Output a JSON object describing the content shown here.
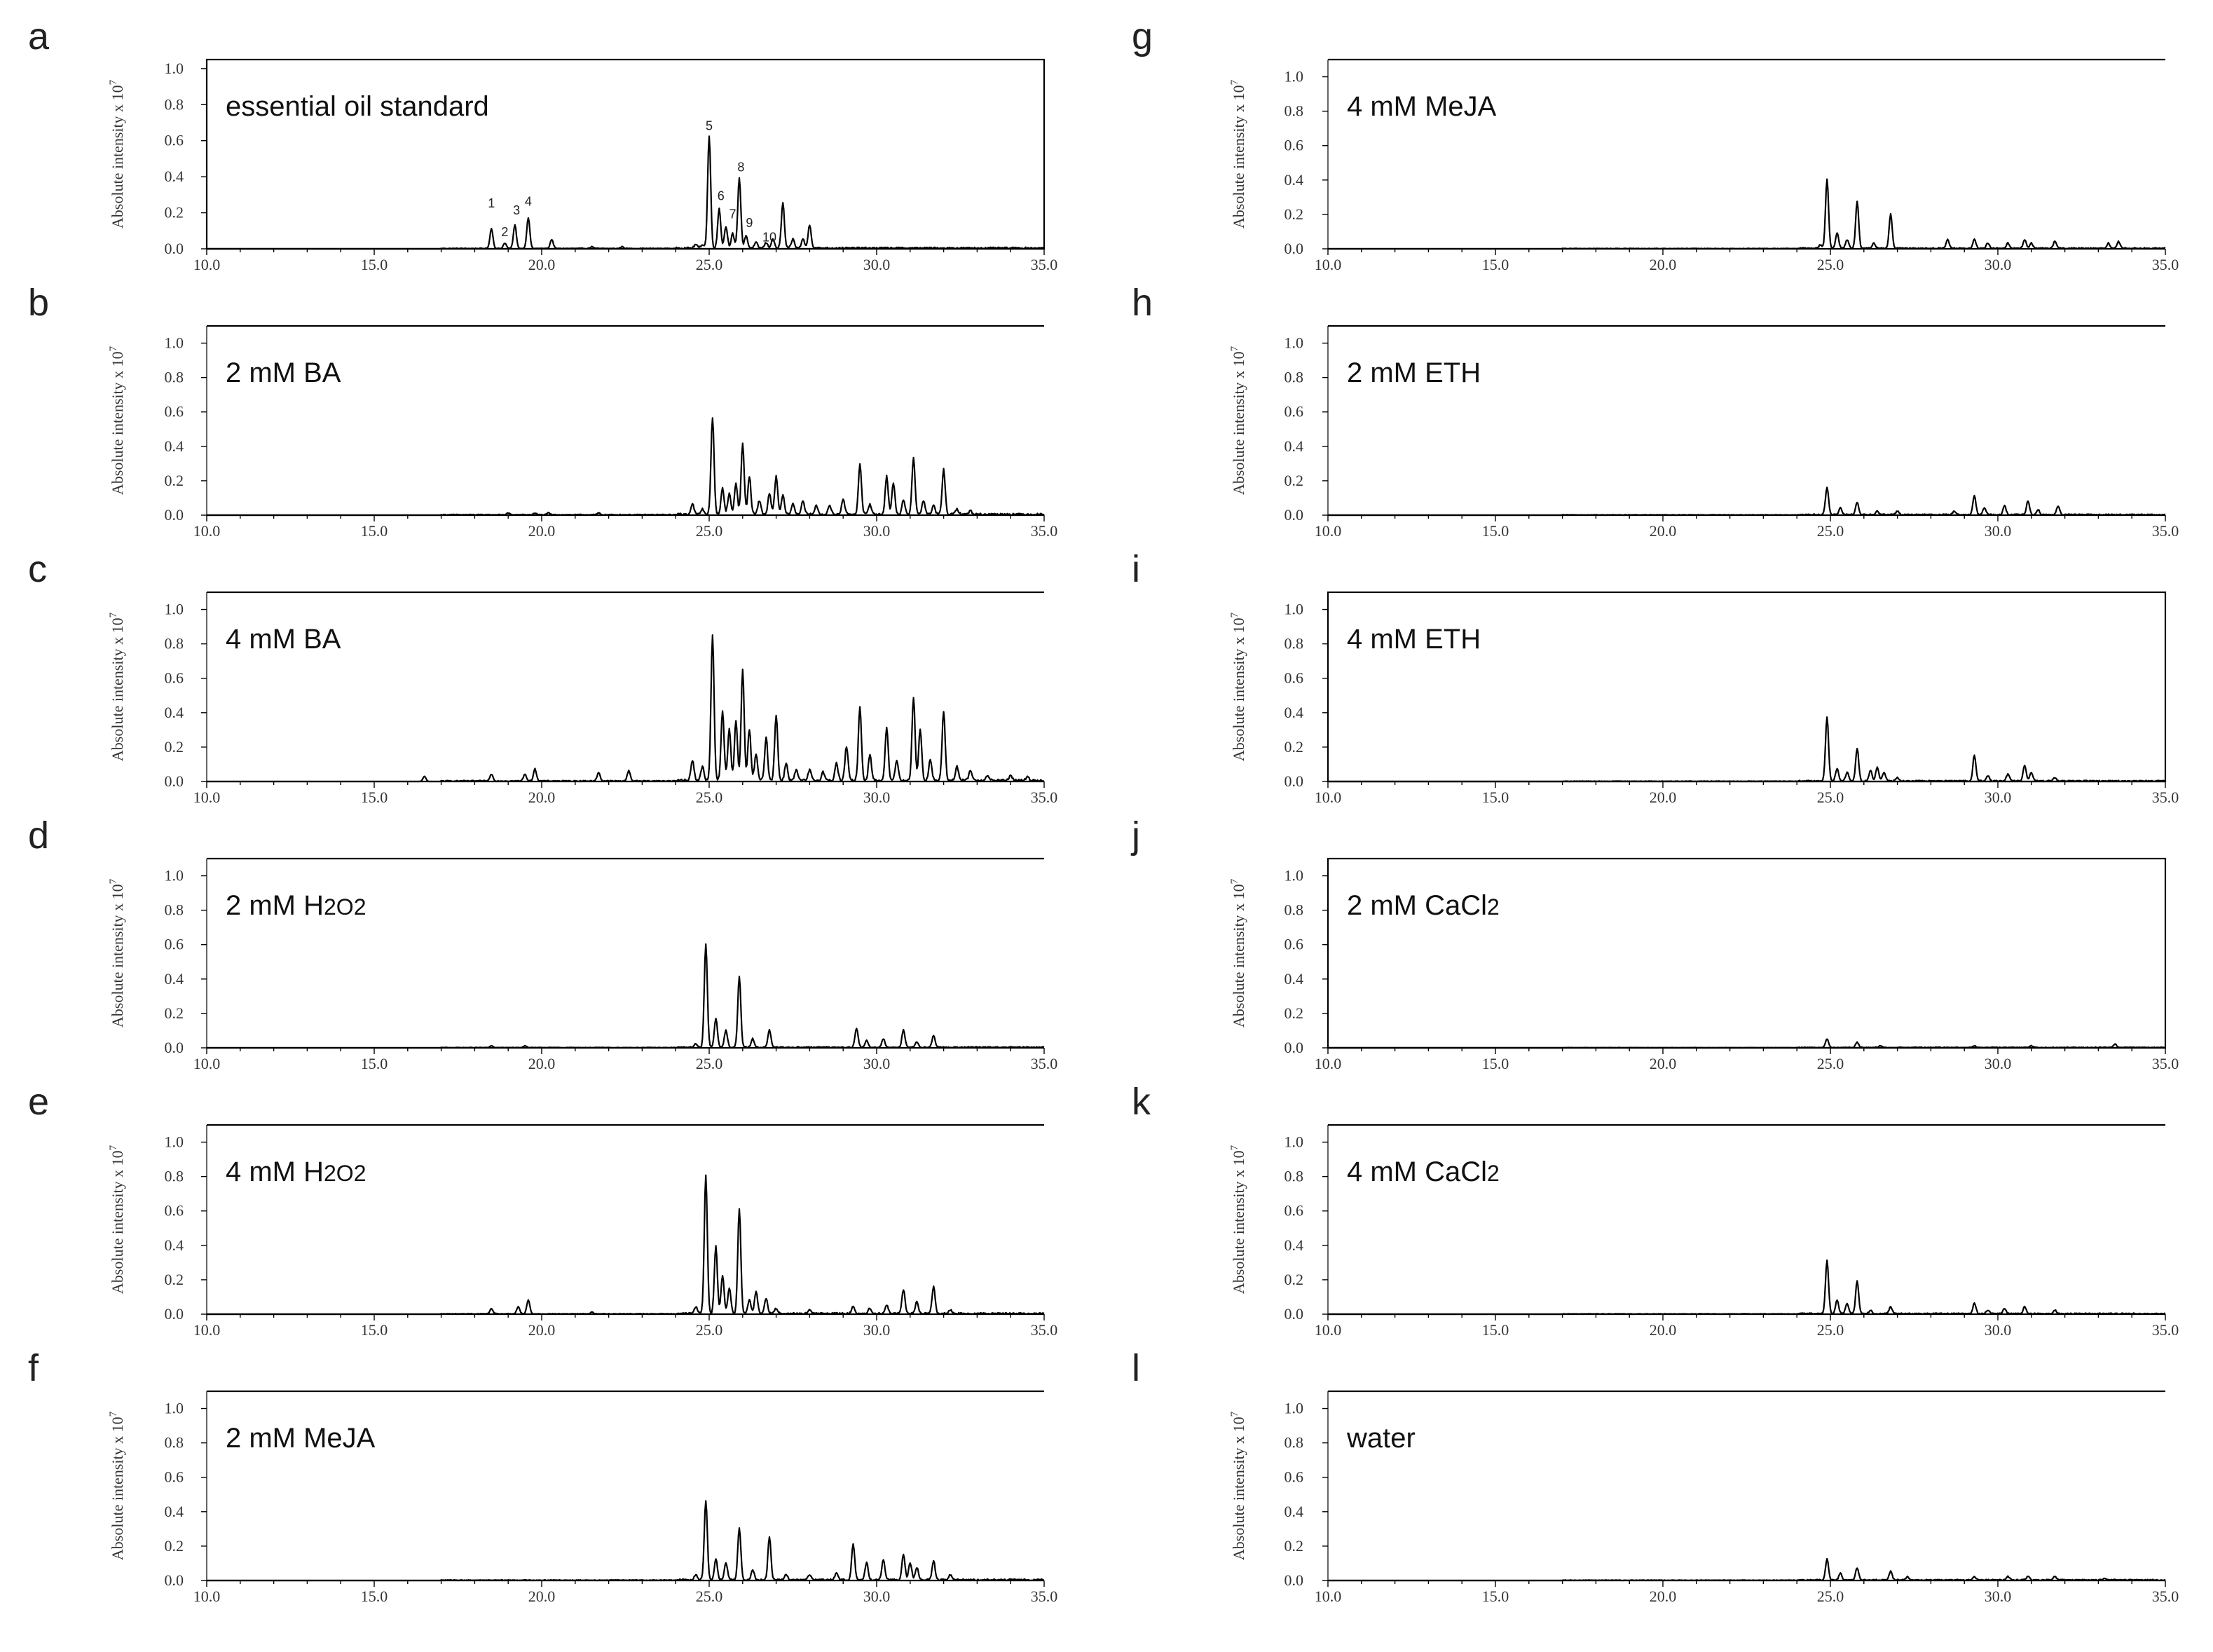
{
  "figure": {
    "ylabel": "Absolute intensity x 10",
    "ylabel_exponent": "7"
  },
  "chart_data": [
    {
      "id": "a",
      "letter": "a",
      "type": "line",
      "condition": "essential oil standard",
      "condition_sub": "",
      "x_ticks": [
        "10.0",
        "15.0",
        "20.0",
        "25.0",
        "30.0",
        "35.0"
      ],
      "y_ticks": [
        "0.0",
        "0.2",
        "0.4",
        "0.6",
        "0.8",
        "1.0"
      ],
      "xlim": [
        10,
        35
      ],
      "ylim": [
        0,
        1.05
      ],
      "full_frame": true,
      "noise": 0.004,
      "peaks": [
        [
          18.5,
          0.11
        ],
        [
          18.9,
          0.03
        ],
        [
          19.2,
          0.13
        ],
        [
          19.6,
          0.17
        ],
        [
          20.3,
          0.05
        ],
        [
          21.5,
          0.01
        ],
        [
          22.4,
          0.01
        ],
        [
          24.6,
          0.02
        ],
        [
          24.8,
          0.02
        ],
        [
          25.0,
          0.62
        ],
        [
          25.3,
          0.22
        ],
        [
          25.5,
          0.12
        ],
        [
          25.7,
          0.08
        ],
        [
          25.9,
          0.39
        ],
        [
          26.1,
          0.07
        ],
        [
          26.4,
          0.03
        ],
        [
          26.7,
          0.03
        ],
        [
          26.9,
          0.05
        ],
        [
          27.2,
          0.25
        ],
        [
          27.5,
          0.05
        ],
        [
          27.8,
          0.05
        ],
        [
          28.0,
          0.13
        ]
      ],
      "peak_labels": [
        {
          "text": "1",
          "x": 18.5,
          "y": 0.23
        },
        {
          "text": "2",
          "x": 18.9,
          "y": 0.07
        },
        {
          "text": "3",
          "x": 19.25,
          "y": 0.19
        },
        {
          "text": "4",
          "x": 19.6,
          "y": 0.24
        },
        {
          "text": "5",
          "x": 25.0,
          "y": 0.66
        },
        {
          "text": "6",
          "x": 25.35,
          "y": 0.27
        },
        {
          "text": "7",
          "x": 25.7,
          "y": 0.17
        },
        {
          "text": "8",
          "x": 25.95,
          "y": 0.43
        },
        {
          "text": "9",
          "x": 26.2,
          "y": 0.12
        },
        {
          "text": "10",
          "x": 26.8,
          "y": 0.04
        }
      ]
    },
    {
      "id": "b",
      "letter": "b",
      "type": "line",
      "condition": "2 mM BA",
      "condition_sub": "",
      "x_ticks": [
        "10.0",
        "15.0",
        "20.0",
        "25.0",
        "30.0",
        "35.0"
      ],
      "y_ticks": [
        "0.0",
        "0.2",
        "0.4",
        "0.6",
        "0.8",
        "1.0"
      ],
      "xlim": [
        10,
        35
      ],
      "ylim": [
        0,
        1.1
      ],
      "full_frame": false,
      "noise": 0.005,
      "peaks": [
        [
          19.0,
          0.01
        ],
        [
          19.8,
          0.01
        ],
        [
          20.2,
          0.01
        ],
        [
          21.7,
          0.01
        ],
        [
          24.5,
          0.06
        ],
        [
          24.8,
          0.03
        ],
        [
          25.1,
          0.56
        ],
        [
          25.4,
          0.15
        ],
        [
          25.6,
          0.12
        ],
        [
          25.8,
          0.18
        ],
        [
          26.0,
          0.41
        ],
        [
          26.2,
          0.22
        ],
        [
          26.5,
          0.08
        ],
        [
          26.8,
          0.12
        ],
        [
          27.0,
          0.22
        ],
        [
          27.2,
          0.11
        ],
        [
          27.5,
          0.06
        ],
        [
          27.8,
          0.08
        ],
        [
          28.2,
          0.05
        ],
        [
          28.6,
          0.05
        ],
        [
          29.0,
          0.09
        ],
        [
          29.5,
          0.29
        ],
        [
          29.8,
          0.06
        ],
        [
          30.3,
          0.22
        ],
        [
          30.5,
          0.18
        ],
        [
          30.8,
          0.08
        ],
        [
          31.1,
          0.33
        ],
        [
          31.4,
          0.08
        ],
        [
          31.7,
          0.05
        ],
        [
          32.0,
          0.26
        ],
        [
          32.4,
          0.03
        ],
        [
          32.8,
          0.02
        ]
      ],
      "peak_labels": []
    },
    {
      "id": "c",
      "letter": "c",
      "type": "line",
      "condition": "4 mM BA",
      "condition_sub": "",
      "x_ticks": [
        "10.0",
        "15.0",
        "20.0",
        "25.0",
        "30.0",
        "35.0"
      ],
      "y_ticks": [
        "0.0",
        "0.2",
        "0.4",
        "0.6",
        "0.8",
        "1.0"
      ],
      "xlim": [
        10,
        35
      ],
      "ylim": [
        0,
        1.1
      ],
      "full_frame": false,
      "noise": 0.006,
      "peaks": [
        [
          16.5,
          0.03
        ],
        [
          18.5,
          0.04
        ],
        [
          19.5,
          0.04
        ],
        [
          19.8,
          0.07
        ],
        [
          21.7,
          0.05
        ],
        [
          22.6,
          0.06
        ],
        [
          24.5,
          0.12
        ],
        [
          24.8,
          0.08
        ],
        [
          25.1,
          0.84
        ],
        [
          25.4,
          0.4
        ],
        [
          25.6,
          0.3
        ],
        [
          25.8,
          0.35
        ],
        [
          26.0,
          0.64
        ],
        [
          26.2,
          0.3
        ],
        [
          26.4,
          0.15
        ],
        [
          26.7,
          0.25
        ],
        [
          27.0,
          0.38
        ],
        [
          27.3,
          0.1
        ],
        [
          27.6,
          0.06
        ],
        [
          28.0,
          0.06
        ],
        [
          28.4,
          0.05
        ],
        [
          28.8,
          0.1
        ],
        [
          29.1,
          0.2
        ],
        [
          29.5,
          0.43
        ],
        [
          29.8,
          0.15
        ],
        [
          30.3,
          0.31
        ],
        [
          30.6,
          0.12
        ],
        [
          31.1,
          0.48
        ],
        [
          31.3,
          0.3
        ],
        [
          31.6,
          0.12
        ],
        [
          32.0,
          0.4
        ],
        [
          32.4,
          0.08
        ],
        [
          32.8,
          0.06
        ],
        [
          33.3,
          0.03
        ],
        [
          34.0,
          0.03
        ],
        [
          34.5,
          0.02
        ]
      ],
      "peak_labels": []
    },
    {
      "id": "d",
      "letter": "d",
      "type": "line",
      "condition": "2 mM H",
      "condition_sub": "2O2",
      "x_ticks": [
        "10.0",
        "15.0",
        "20.0",
        "25.0",
        "30.0",
        "35.0"
      ],
      "y_ticks": [
        "0.0",
        "0.2",
        "0.4",
        "0.6",
        "0.8",
        "1.0"
      ],
      "xlim": [
        10,
        35
      ],
      "ylim": [
        0,
        1.1
      ],
      "full_frame": false,
      "noise": 0.003,
      "peaks": [
        [
          18.5,
          0.01
        ],
        [
          19.5,
          0.01
        ],
        [
          24.6,
          0.02
        ],
        [
          24.9,
          0.6
        ],
        [
          25.2,
          0.17
        ],
        [
          25.5,
          0.1
        ],
        [
          25.9,
          0.41
        ],
        [
          26.3,
          0.05
        ],
        [
          26.8,
          0.1
        ],
        [
          29.4,
          0.11
        ],
        [
          29.7,
          0.04
        ],
        [
          30.2,
          0.05
        ],
        [
          30.8,
          0.1
        ],
        [
          31.2,
          0.03
        ],
        [
          31.7,
          0.07
        ]
      ],
      "peak_labels": []
    },
    {
      "id": "e",
      "letter": "e",
      "type": "line",
      "condition": "4 mM H",
      "condition_sub": "2O2",
      "x_ticks": [
        "10.0",
        "15.0",
        "20.0",
        "25.0",
        "30.0",
        "35.0"
      ],
      "y_ticks": [
        "0.0",
        "0.2",
        "0.4",
        "0.6",
        "0.8",
        "1.0"
      ],
      "xlim": [
        10,
        35
      ],
      "ylim": [
        0,
        1.1
      ],
      "full_frame": false,
      "noise": 0.004,
      "peaks": [
        [
          18.5,
          0.03
        ],
        [
          19.3,
          0.04
        ],
        [
          19.6,
          0.08
        ],
        [
          21.5,
          0.01
        ],
        [
          24.6,
          0.04
        ],
        [
          24.9,
          0.8
        ],
        [
          25.2,
          0.39
        ],
        [
          25.4,
          0.22
        ],
        [
          25.6,
          0.15
        ],
        [
          25.9,
          0.61
        ],
        [
          26.2,
          0.08
        ],
        [
          26.4,
          0.13
        ],
        [
          26.7,
          0.09
        ],
        [
          27.0,
          0.03
        ],
        [
          28.0,
          0.02
        ],
        [
          29.3,
          0.04
        ],
        [
          29.8,
          0.03
        ],
        [
          30.3,
          0.05
        ],
        [
          30.8,
          0.14
        ],
        [
          31.2,
          0.07
        ],
        [
          31.7,
          0.16
        ],
        [
          32.2,
          0.02
        ]
      ],
      "peak_labels": []
    },
    {
      "id": "f",
      "letter": "f",
      "type": "line",
      "condition": "2 mM MeJA",
      "condition_sub": "",
      "x_ticks": [
        "10.0",
        "15.0",
        "20.0",
        "25.0",
        "30.0",
        "35.0"
      ],
      "y_ticks": [
        "0.0",
        "0.2",
        "0.4",
        "0.6",
        "0.8",
        "1.0"
      ],
      "xlim": [
        10,
        35
      ],
      "ylim": [
        0,
        1.1
      ],
      "full_frame": false,
      "noise": 0.004,
      "peaks": [
        [
          24.6,
          0.03
        ],
        [
          24.9,
          0.46
        ],
        [
          25.2,
          0.12
        ],
        [
          25.5,
          0.1
        ],
        [
          25.9,
          0.3
        ],
        [
          26.3,
          0.06
        ],
        [
          26.8,
          0.25
        ],
        [
          27.3,
          0.03
        ],
        [
          28.0,
          0.03
        ],
        [
          28.8,
          0.04
        ],
        [
          29.3,
          0.21
        ],
        [
          29.7,
          0.1
        ],
        [
          30.2,
          0.12
        ],
        [
          30.8,
          0.15
        ],
        [
          31.0,
          0.1
        ],
        [
          31.2,
          0.07
        ],
        [
          31.7,
          0.11
        ],
        [
          32.2,
          0.03
        ]
      ],
      "peak_labels": []
    },
    {
      "id": "g",
      "letter": "g",
      "type": "line",
      "condition": "4 mM MeJA",
      "condition_sub": "",
      "x_ticks": [
        "10.0",
        "15.0",
        "20.0",
        "25.0",
        "30.0",
        "35.0"
      ],
      "y_ticks": [
        "0.0",
        "0.2",
        "0.4",
        "0.6",
        "0.8",
        "1.0"
      ],
      "xlim": [
        10,
        35
      ],
      "ylim": [
        0,
        1.1
      ],
      "full_frame": false,
      "noise": 0.003,
      "peaks": [
        [
          24.7,
          0.02
        ],
        [
          24.9,
          0.4
        ],
        [
          25.2,
          0.09
        ],
        [
          25.5,
          0.05
        ],
        [
          25.8,
          0.27
        ],
        [
          26.3,
          0.03
        ],
        [
          26.8,
          0.2
        ],
        [
          28.5,
          0.05
        ],
        [
          29.3,
          0.05
        ],
        [
          29.7,
          0.03
        ],
        [
          30.3,
          0.03
        ],
        [
          30.8,
          0.05
        ],
        [
          31.0,
          0.03
        ],
        [
          31.7,
          0.04
        ],
        [
          33.3,
          0.03
        ],
        [
          33.6,
          0.04
        ]
      ],
      "peak_labels": []
    },
    {
      "id": "h",
      "letter": "h",
      "type": "line",
      "condition": "2 mM ETH",
      "condition_sub": "",
      "x_ticks": [
        "10.0",
        "15.0",
        "20.0",
        "25.0",
        "30.0",
        "35.0"
      ],
      "y_ticks": [
        "0.0",
        "0.2",
        "0.4",
        "0.6",
        "0.8",
        "1.0"
      ],
      "xlim": [
        10,
        35
      ],
      "ylim": [
        0,
        1.1
      ],
      "full_frame": false,
      "noise": 0.003,
      "peaks": [
        [
          24.9,
          0.16
        ],
        [
          25.3,
          0.04
        ],
        [
          25.8,
          0.07
        ],
        [
          26.4,
          0.02
        ],
        [
          27.0,
          0.02
        ],
        [
          28.7,
          0.02
        ],
        [
          29.3,
          0.11
        ],
        [
          29.6,
          0.04
        ],
        [
          30.2,
          0.05
        ],
        [
          30.9,
          0.08
        ],
        [
          31.2,
          0.03
        ],
        [
          31.8,
          0.05
        ]
      ],
      "peak_labels": []
    },
    {
      "id": "i",
      "letter": "i",
      "type": "line",
      "condition": "4 mM ETH",
      "condition_sub": "",
      "x_ticks": [
        "10.0",
        "15.0",
        "20.0",
        "25.0",
        "30.0",
        "35.0"
      ],
      "y_ticks": [
        "0.0",
        "0.2",
        "0.4",
        "0.6",
        "0.8",
        "1.0"
      ],
      "xlim": [
        10,
        35
      ],
      "ylim": [
        0,
        1.1
      ],
      "full_frame": true,
      "noise": 0.003,
      "peaks": [
        [
          24.9,
          0.37
        ],
        [
          25.2,
          0.07
        ],
        [
          25.5,
          0.05
        ],
        [
          25.8,
          0.19
        ],
        [
          26.2,
          0.06
        ],
        [
          26.4,
          0.08
        ],
        [
          26.6,
          0.05
        ],
        [
          27.0,
          0.02
        ],
        [
          29.3,
          0.15
        ],
        [
          29.7,
          0.03
        ],
        [
          30.3,
          0.04
        ],
        [
          30.8,
          0.09
        ],
        [
          31.0,
          0.05
        ],
        [
          31.7,
          0.02
        ]
      ],
      "peak_labels": []
    },
    {
      "id": "j",
      "letter": "j",
      "type": "line",
      "condition": "2 mM CaCl",
      "condition_sub": "2",
      "x_ticks": [
        "10.0",
        "15.0",
        "20.0",
        "25.0",
        "30.0",
        "35.0"
      ],
      "y_ticks": [
        "0.0",
        "0.2",
        "0.4",
        "0.6",
        "0.8",
        "1.0"
      ],
      "xlim": [
        10,
        35
      ],
      "ylim": [
        0,
        1.1
      ],
      "full_frame": true,
      "noise": 0.002,
      "peaks": [
        [
          24.9,
          0.05
        ],
        [
          25.8,
          0.03
        ],
        [
          26.5,
          0.01
        ],
        [
          29.3,
          0.01
        ],
        [
          31.0,
          0.01
        ],
        [
          33.5,
          0.02
        ]
      ],
      "peak_labels": []
    },
    {
      "id": "k",
      "letter": "k",
      "type": "line",
      "condition": "4 mM CaCl",
      "condition_sub": "2",
      "x_ticks": [
        "10.0",
        "15.0",
        "20.0",
        "25.0",
        "30.0",
        "35.0"
      ],
      "y_ticks": [
        "0.0",
        "0.2",
        "0.4",
        "0.6",
        "0.8",
        "1.0"
      ],
      "xlim": [
        10,
        35
      ],
      "ylim": [
        0,
        1.1
      ],
      "full_frame": false,
      "noise": 0.003,
      "peaks": [
        [
          24.9,
          0.31
        ],
        [
          25.2,
          0.08
        ],
        [
          25.5,
          0.06
        ],
        [
          25.8,
          0.19
        ],
        [
          26.2,
          0.02
        ],
        [
          26.8,
          0.04
        ],
        [
          29.3,
          0.06
        ],
        [
          29.7,
          0.02
        ],
        [
          30.2,
          0.03
        ],
        [
          30.8,
          0.04
        ],
        [
          31.7,
          0.02
        ]
      ],
      "peak_labels": []
    },
    {
      "id": "l",
      "letter": "l",
      "type": "line",
      "condition": "water",
      "condition_sub": "",
      "x_ticks": [
        "10.0",
        "15.0",
        "20.0",
        "25.0",
        "30.0",
        "35.0"
      ],
      "y_ticks": [
        "0.0",
        "0.2",
        "0.4",
        "0.6",
        "0.8",
        "1.0"
      ],
      "xlim": [
        10,
        35
      ],
      "ylim": [
        0,
        1.1
      ],
      "full_frame": false,
      "noise": 0.003,
      "peaks": [
        [
          24.9,
          0.12
        ],
        [
          25.3,
          0.04
        ],
        [
          25.8,
          0.07
        ],
        [
          26.8,
          0.05
        ],
        [
          27.3,
          0.02
        ],
        [
          29.3,
          0.02
        ],
        [
          30.3,
          0.02
        ],
        [
          30.9,
          0.02
        ],
        [
          31.7,
          0.02
        ],
        [
          33.2,
          0.01
        ]
      ],
      "peak_labels": []
    }
  ]
}
